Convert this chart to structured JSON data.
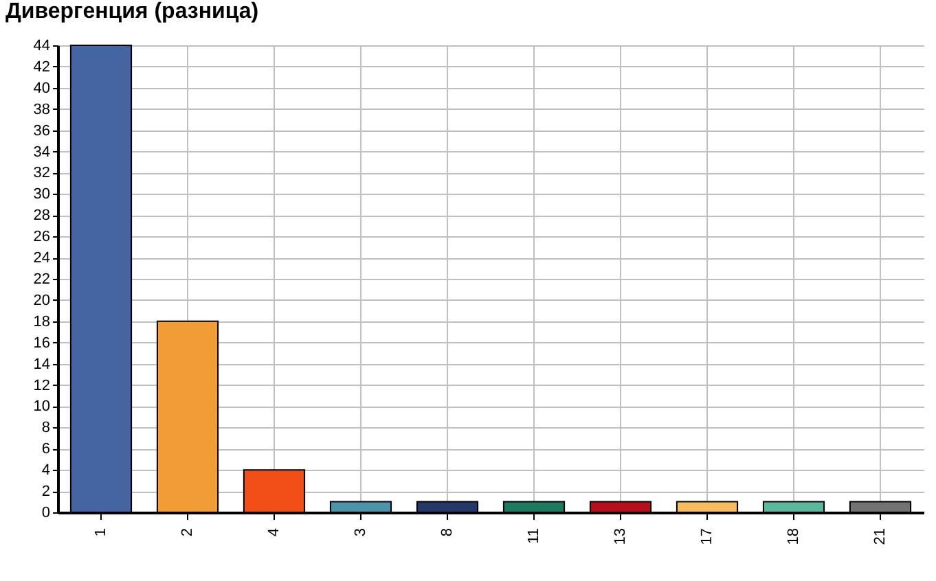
{
  "chart_data": {
    "type": "bar",
    "title": "Дивергенция (разница)",
    "categories": [
      "1",
      "2",
      "4",
      "3",
      "8",
      "11",
      "13",
      "17",
      "18",
      "21"
    ],
    "values": [
      44,
      18,
      4,
      1,
      1,
      1,
      1,
      1,
      1,
      1
    ],
    "colors": [
      "#4465a1",
      "#f29c38",
      "#f05018",
      "#4d94a8",
      "#26386a",
      "#1d7a5f",
      "#b8101a",
      "#f5bd60",
      "#5bb89c",
      "#737373"
    ],
    "ylim": [
      0,
      44
    ],
    "yticks": [
      0,
      2,
      4,
      6,
      8,
      10,
      12,
      14,
      16,
      18,
      20,
      22,
      24,
      26,
      28,
      30,
      32,
      34,
      36,
      38,
      40,
      42,
      44
    ],
    "grid": true
  }
}
